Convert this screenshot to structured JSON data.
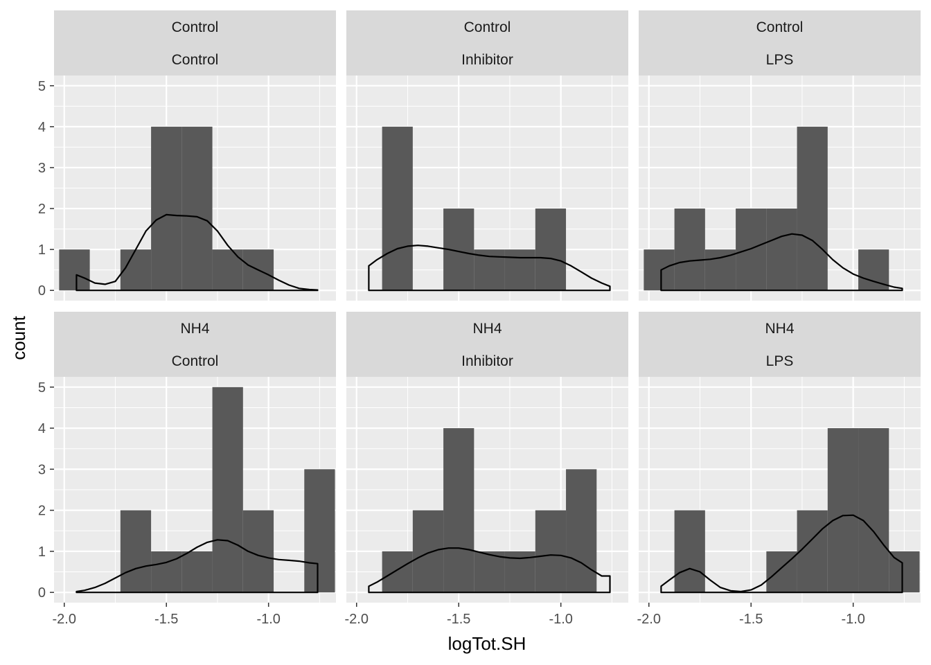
{
  "chart_data": {
    "type": "histogram",
    "xlabel": "logTot.SH",
    "ylabel": "count",
    "xlim": [
      -2.05,
      -0.67
    ],
    "ylim": [
      -0.25,
      5.25
    ],
    "x_ticks": [
      -2.0,
      -1.5,
      -1.0
    ],
    "x_tick_labels": [
      "-2.0",
      "-1.5",
      "-1.0"
    ],
    "y_ticks": [
      0,
      1,
      2,
      3,
      4,
      5
    ],
    "y_tick_labels": [
      "0",
      "1",
      "2",
      "3",
      "4",
      "5"
    ],
    "bin_width": 0.15,
    "bin_centers": [
      -1.95,
      -1.8,
      -1.65,
      -1.5,
      -1.35,
      -1.2,
      -1.05,
      -0.9,
      -0.75
    ],
    "grid": true,
    "density_overlay": "scaled density curve per panel",
    "panels": [
      {
        "strip": [
          "Control",
          "Control"
        ],
        "counts": [
          1,
          0,
          1,
          4,
          4,
          1,
          1,
          0,
          0
        ],
        "density": [
          [
            -1.94,
            0.38
          ],
          [
            -1.9,
            0.3
          ],
          [
            -1.85,
            0.18
          ],
          [
            -1.8,
            0.15
          ],
          [
            -1.75,
            0.22
          ],
          [
            -1.7,
            0.55
          ],
          [
            -1.65,
            1.0
          ],
          [
            -1.6,
            1.45
          ],
          [
            -1.55,
            1.72
          ],
          [
            -1.5,
            1.85
          ],
          [
            -1.45,
            1.83
          ],
          [
            -1.4,
            1.82
          ],
          [
            -1.35,
            1.8
          ],
          [
            -1.3,
            1.7
          ],
          [
            -1.25,
            1.45
          ],
          [
            -1.2,
            1.1
          ],
          [
            -1.15,
            0.82
          ],
          [
            -1.1,
            0.62
          ],
          [
            -1.05,
            0.5
          ],
          [
            -1.0,
            0.38
          ],
          [
            -0.95,
            0.25
          ],
          [
            -0.9,
            0.13
          ],
          [
            -0.85,
            0.05
          ],
          [
            -0.8,
            0.02
          ],
          [
            -0.76,
            0.01
          ]
        ]
      },
      {
        "strip": [
          "Control",
          "Inhibitor"
        ],
        "counts": [
          0,
          4,
          0,
          2,
          1,
          1,
          2,
          0,
          0
        ],
        "density": [
          [
            -1.94,
            0.6
          ],
          [
            -1.9,
            0.75
          ],
          [
            -1.85,
            0.9
          ],
          [
            -1.8,
            1.02
          ],
          [
            -1.75,
            1.08
          ],
          [
            -1.7,
            1.1
          ],
          [
            -1.65,
            1.08
          ],
          [
            -1.6,
            1.04
          ],
          [
            -1.55,
            1.0
          ],
          [
            -1.5,
            0.95
          ],
          [
            -1.45,
            0.9
          ],
          [
            -1.4,
            0.86
          ],
          [
            -1.35,
            0.83
          ],
          [
            -1.3,
            0.82
          ],
          [
            -1.25,
            0.81
          ],
          [
            -1.2,
            0.8
          ],
          [
            -1.15,
            0.8
          ],
          [
            -1.1,
            0.8
          ],
          [
            -1.05,
            0.78
          ],
          [
            -1.0,
            0.72
          ],
          [
            -0.95,
            0.6
          ],
          [
            -0.9,
            0.45
          ],
          [
            -0.85,
            0.3
          ],
          [
            -0.8,
            0.18
          ],
          [
            -0.76,
            0.1
          ]
        ]
      },
      {
        "strip": [
          "Control",
          "LPS"
        ],
        "counts": [
          1,
          2,
          1,
          2,
          2,
          4,
          0,
          1,
          0
        ],
        "density": [
          [
            -1.94,
            0.5
          ],
          [
            -1.9,
            0.6
          ],
          [
            -1.85,
            0.68
          ],
          [
            -1.8,
            0.72
          ],
          [
            -1.75,
            0.74
          ],
          [
            -1.7,
            0.76
          ],
          [
            -1.65,
            0.8
          ],
          [
            -1.6,
            0.86
          ],
          [
            -1.55,
            0.94
          ],
          [
            -1.5,
            1.02
          ],
          [
            -1.45,
            1.12
          ],
          [
            -1.4,
            1.22
          ],
          [
            -1.35,
            1.32
          ],
          [
            -1.3,
            1.38
          ],
          [
            -1.25,
            1.35
          ],
          [
            -1.2,
            1.22
          ],
          [
            -1.15,
            1.0
          ],
          [
            -1.1,
            0.75
          ],
          [
            -1.05,
            0.55
          ],
          [
            -1.0,
            0.4
          ],
          [
            -0.95,
            0.3
          ],
          [
            -0.9,
            0.22
          ],
          [
            -0.85,
            0.15
          ],
          [
            -0.8,
            0.08
          ],
          [
            -0.76,
            0.05
          ]
        ]
      },
      {
        "strip": [
          "NH4",
          "Control"
        ],
        "counts": [
          0,
          0,
          2,
          1,
          1,
          5,
          2,
          0,
          3
        ],
        "density": [
          [
            -1.94,
            0.02
          ],
          [
            -1.9,
            0.05
          ],
          [
            -1.85,
            0.12
          ],
          [
            -1.8,
            0.22
          ],
          [
            -1.75,
            0.35
          ],
          [
            -1.7,
            0.48
          ],
          [
            -1.65,
            0.58
          ],
          [
            -1.6,
            0.64
          ],
          [
            -1.55,
            0.68
          ],
          [
            -1.5,
            0.73
          ],
          [
            -1.45,
            0.82
          ],
          [
            -1.4,
            0.95
          ],
          [
            -1.35,
            1.1
          ],
          [
            -1.3,
            1.22
          ],
          [
            -1.25,
            1.28
          ],
          [
            -1.2,
            1.26
          ],
          [
            -1.15,
            1.15
          ],
          [
            -1.1,
            1.0
          ],
          [
            -1.05,
            0.9
          ],
          [
            -1.0,
            0.84
          ],
          [
            -0.95,
            0.8
          ],
          [
            -0.9,
            0.78
          ],
          [
            -0.85,
            0.76
          ],
          [
            -0.8,
            0.72
          ],
          [
            -0.76,
            0.7
          ]
        ]
      },
      {
        "strip": [
          "NH4",
          "Inhibitor"
        ],
        "counts": [
          0,
          1,
          2,
          4,
          1,
          1,
          2,
          3,
          0
        ],
        "density": [
          [
            -1.94,
            0.15
          ],
          [
            -1.9,
            0.25
          ],
          [
            -1.85,
            0.4
          ],
          [
            -1.8,
            0.55
          ],
          [
            -1.75,
            0.7
          ],
          [
            -1.7,
            0.84
          ],
          [
            -1.65,
            0.96
          ],
          [
            -1.6,
            1.04
          ],
          [
            -1.55,
            1.08
          ],
          [
            -1.5,
            1.08
          ],
          [
            -1.45,
            1.04
          ],
          [
            -1.4,
            0.98
          ],
          [
            -1.35,
            0.92
          ],
          [
            -1.3,
            0.87
          ],
          [
            -1.25,
            0.84
          ],
          [
            -1.2,
            0.83
          ],
          [
            -1.15,
            0.85
          ],
          [
            -1.1,
            0.88
          ],
          [
            -1.05,
            0.91
          ],
          [
            -1.0,
            0.9
          ],
          [
            -0.95,
            0.84
          ],
          [
            -0.9,
            0.72
          ],
          [
            -0.85,
            0.55
          ],
          [
            -0.8,
            0.4
          ],
          [
            -0.76,
            0.4
          ]
        ]
      },
      {
        "strip": [
          "NH4",
          "LPS"
        ],
        "counts": [
          0,
          2,
          0,
          0,
          1,
          2,
          4,
          4,
          1
        ],
        "density": [
          [
            -1.94,
            0.15
          ],
          [
            -1.9,
            0.3
          ],
          [
            -1.85,
            0.48
          ],
          [
            -1.8,
            0.58
          ],
          [
            -1.75,
            0.5
          ],
          [
            -1.7,
            0.3
          ],
          [
            -1.65,
            0.12
          ],
          [
            -1.6,
            0.04
          ],
          [
            -1.55,
            0.02
          ],
          [
            -1.5,
            0.06
          ],
          [
            -1.45,
            0.18
          ],
          [
            -1.4,
            0.38
          ],
          [
            -1.35,
            0.6
          ],
          [
            -1.3,
            0.82
          ],
          [
            -1.25,
            1.05
          ],
          [
            -1.2,
            1.3
          ],
          [
            -1.15,
            1.55
          ],
          [
            -1.1,
            1.75
          ],
          [
            -1.05,
            1.87
          ],
          [
            -1.0,
            1.88
          ],
          [
            -0.95,
            1.75
          ],
          [
            -0.9,
            1.48
          ],
          [
            -0.85,
            1.15
          ],
          [
            -0.8,
            0.85
          ],
          [
            -0.76,
            0.72
          ]
        ]
      }
    ]
  }
}
